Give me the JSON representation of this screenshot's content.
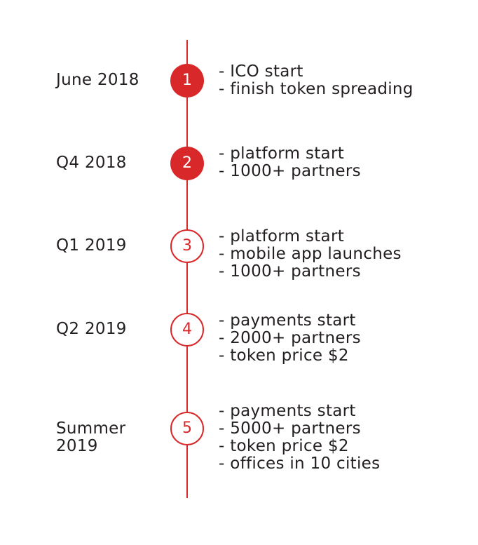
{
  "colors": {
    "accent": "#d8282a",
    "text": "#231f20",
    "background": "#ffffff"
  },
  "milestones": [
    {
      "step": "1",
      "date": "June 2018",
      "style": "filled",
      "items": [
        "- ICO start",
        "- finish token spreading"
      ]
    },
    {
      "step": "2",
      "date": "Q4 2018",
      "style": "filled",
      "items": [
        "- platform start",
        "- 1000+ partners"
      ]
    },
    {
      "step": "3",
      "date": "Q1 2019",
      "style": "outlined",
      "items": [
        "- platform start",
        "- mobile app launches",
        "- 1000+ partners"
      ]
    },
    {
      "step": "4",
      "date": "Q2 2019",
      "style": "outlined",
      "items": [
        "- payments start",
        "- 2000+ partners",
        "- token price $2"
      ]
    },
    {
      "step": "5",
      "date": "Summer 2019",
      "style": "outlined",
      "items": [
        "- payments start",
        "- 5000+ partners",
        "- token price $2",
        "- offices in 10 cities"
      ]
    }
  ]
}
